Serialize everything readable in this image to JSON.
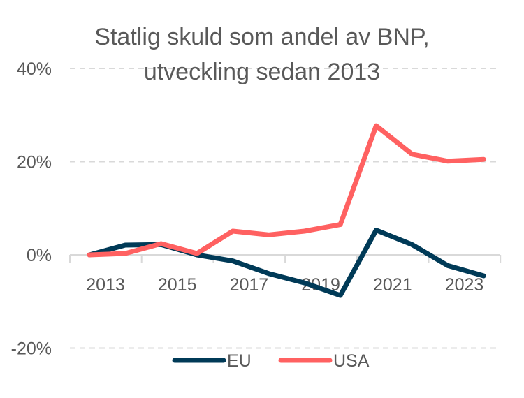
{
  "chart_data": {
    "type": "line",
    "title_lines": [
      "Statlig skuld som andel av BNP,",
      "utveckling sedan 2013"
    ],
    "xlabel": "",
    "ylabel": "",
    "x": [
      2013,
      2014,
      2015,
      2016,
      2017,
      2018,
      2019,
      2020,
      2021,
      2022,
      2023,
      2024
    ],
    "x_tick_labels": [
      "2013",
      "2015",
      "2017",
      "2019",
      "2021",
      "2023"
    ],
    "y_tick_labels": [
      "40%",
      "20%",
      "0%",
      "-20%"
    ],
    "y_ticks": [
      40,
      20,
      0,
      -20
    ],
    "ylim": [
      -20,
      40
    ],
    "grid": true,
    "legend_position": "bottom",
    "series": [
      {
        "name": "EU",
        "color": "#003a57",
        "values": [
          0,
          2.1,
          2.2,
          0,
          -1.3,
          -4.0,
          -6.0,
          -8.7,
          5.3,
          2.2,
          -2.3,
          -4.5
        ]
      },
      {
        "name": "USA",
        "color": "#ff6161",
        "values": [
          0,
          0.3,
          2.4,
          0.3,
          5.1,
          4.3,
          5.1,
          6.5,
          27.7,
          21.6,
          20.1,
          20.5
        ]
      }
    ]
  }
}
